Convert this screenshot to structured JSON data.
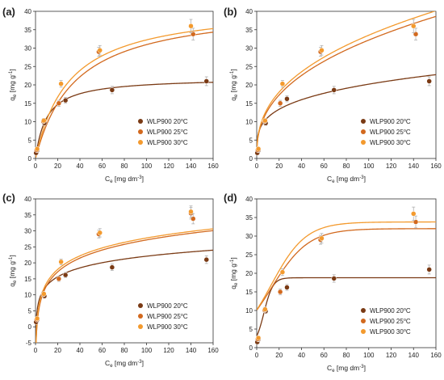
{
  "colors": {
    "s20": "#7a3a14",
    "s25": "#d2691e",
    "s30": "#f39a2e",
    "error_bar": "#b0b0b0",
    "axis": "#333333"
  },
  "chart_data": [
    {
      "type": "scatter",
      "panel_label": "(a)",
      "xlabel": "C",
      "xlabel_sub": "e",
      "xlabel_unit": " [mg dm",
      "xlabel_sup": "-3",
      "xlabel_end": "]",
      "ylabel": "q",
      "ylabel_sub": "e",
      "ylabel_unit": " [mg g",
      "ylabel_sup": "-1",
      "ylabel_end": "]",
      "xlim": [
        0,
        160
      ],
      "ylim": [
        0,
        40
      ],
      "xticks": [
        0,
        20,
        40,
        60,
        80,
        100,
        120,
        140,
        160
      ],
      "yticks": [
        0,
        5,
        10,
        15,
        20,
        25,
        30,
        35,
        40
      ],
      "legend_position": "lower-right",
      "series": [
        {
          "name": "WLP900 20",
          "name_sup": "o",
          "name_end": "C",
          "color": "s20",
          "points": [
            [
              0.5,
              1.5,
              0.4
            ],
            [
              1.5,
              2.2,
              0.4
            ],
            [
              8,
              9.6,
              0.6
            ],
            [
              27,
              15.8,
              0.8
            ],
            [
              69,
              18.6,
              1.0
            ],
            [
              154,
              21.0,
              1.2
            ]
          ],
          "fit": {
            "model": "langmuir",
            "qmax": 22.0,
            "K": 0.1
          }
        },
        {
          "name": "WLP900 25",
          "name_sup": "o",
          "name_end": "C",
          "color": "s25",
          "points": [
            [
              1,
              2.3,
              0.5
            ],
            [
              7,
              10.1,
              0.6
            ],
            [
              21,
              15.0,
              0.8
            ],
            [
              57,
              29.0,
              1.2
            ],
            [
              142,
              33.8,
              1.6
            ]
          ],
          "fit": {
            "model": "langmuir",
            "qmax": 42.0,
            "K": 0.028
          }
        },
        {
          "name": "WLP900 30",
          "name_sup": "o",
          "name_end": "C",
          "color": "s30",
          "points": [
            [
              1.5,
              2.6,
              0.5
            ],
            [
              7.5,
              10.3,
              0.6
            ],
            [
              23,
              20.3,
              0.9
            ],
            [
              58,
              29.4,
              1.3
            ],
            [
              140,
              36.0,
              1.8
            ]
          ],
          "fit": {
            "model": "langmuir",
            "qmax": 42.0,
            "K": 0.033
          }
        }
      ]
    },
    {
      "type": "scatter",
      "panel_label": "(b)",
      "xlabel": "C",
      "xlabel_sub": "e",
      "xlabel_unit": " [mg dm",
      "xlabel_sup": "-3",
      "xlabel_end": "]",
      "ylabel": "q",
      "ylabel_sub": "e",
      "ylabel_unit": " [mg g",
      "ylabel_sup": "-1",
      "ylabel_end": "]",
      "xlim": [
        0,
        160
      ],
      "ylim": [
        0,
        40
      ],
      "xticks": [
        0,
        20,
        40,
        60,
        80,
        100,
        120,
        140,
        160
      ],
      "yticks": [
        0,
        5,
        10,
        15,
        20,
        25,
        30,
        35,
        40
      ],
      "legend_position": "lower-right",
      "series": [
        {
          "name": "WLP900 20",
          "name_sup": "o",
          "name_end": "C",
          "color": "s20",
          "points": [
            [
              0.5,
              1.5,
              0.4
            ],
            [
              1.5,
              2.2,
              0.4
            ],
            [
              8,
              9.6,
              0.6
            ],
            [
              27,
              16.2,
              0.8
            ],
            [
              69,
              18.6,
              1.0
            ],
            [
              154,
              21.0,
              1.2
            ]
          ],
          "fit": {
            "model": "freundlich",
            "K": 6.2,
            "n": 3.9
          }
        },
        {
          "name": "WLP900 25",
          "name_sup": "o",
          "name_end": "C",
          "color": "s25",
          "points": [
            [
              1,
              2.3,
              0.5
            ],
            [
              7,
              10.1,
              0.6
            ],
            [
              21,
              15.0,
              0.8
            ],
            [
              57,
              29.0,
              1.2
            ],
            [
              142,
              33.8,
              1.6
            ]
          ],
          "fit": {
            "model": "freundlich",
            "K": 5.4,
            "n": 2.58
          }
        },
        {
          "name": "WLP900 30",
          "name_sup": "o",
          "name_end": "C",
          "color": "s30",
          "points": [
            [
              1.5,
              2.6,
              0.5
            ],
            [
              7.5,
              10.3,
              0.6
            ],
            [
              23,
              20.3,
              0.9
            ],
            [
              58,
              29.4,
              1.3
            ],
            [
              140,
              36.0,
              1.8
            ]
          ],
          "fit": {
            "model": "freundlich",
            "K": 5.7,
            "n": 2.6
          }
        }
      ]
    },
    {
      "type": "scatter",
      "panel_label": "(c)",
      "xlabel": "C",
      "xlabel_sub": "e",
      "xlabel_unit": " [mg dm",
      "xlabel_sup": "-3",
      "xlabel_end": "]",
      "ylabel": "q",
      "ylabel_sub": "e",
      "ylabel_unit": " [mg g",
      "ylabel_sup": "-1",
      "ylabel_end": "]",
      "xlim": [
        0,
        160
      ],
      "ylim": [
        -5,
        40
      ],
      "xticks": [
        0,
        20,
        40,
        60,
        80,
        100,
        120,
        140,
        160
      ],
      "yticks": [
        -5,
        0,
        5,
        10,
        15,
        20,
        25,
        30,
        35,
        40
      ],
      "legend_position": "lower-right",
      "series": [
        {
          "name": "WLP900 20",
          "name_sup": "o",
          "name_end": "C",
          "color": "s20",
          "points": [
            [
              0.5,
              1.5,
              0.4
            ],
            [
              1.5,
              2.2,
              0.4
            ],
            [
              8,
              9.6,
              0.6
            ],
            [
              27,
              16.2,
              0.8
            ],
            [
              69,
              18.6,
              1.0
            ],
            [
              154,
              21.0,
              1.2
            ]
          ],
          "fit": {
            "model": "temkin",
            "A": 2.5,
            "B": 4.0
          }
        },
        {
          "name": "WLP900 25",
          "name_sup": "o",
          "name_end": "C",
          "color": "s25",
          "points": [
            [
              1,
              2.3,
              0.5
            ],
            [
              7,
              10.1,
              0.6
            ],
            [
              21,
              15.0,
              0.8
            ],
            [
              57,
              29.0,
              1.2
            ],
            [
              140,
              35.5,
              1.8
            ],
            [
              142,
              33.8,
              1.6
            ]
          ],
          "fit": {
            "model": "temkin",
            "A": 0.8,
            "B": 6.2
          }
        },
        {
          "name": "WLP900 30",
          "name_sup": "o",
          "name_end": "C",
          "color": "s30",
          "points": [
            [
              1.5,
              2.6,
              0.5
            ],
            [
              7.5,
              10.3,
              0.6
            ],
            [
              23,
              20.3,
              0.9
            ],
            [
              58,
              29.4,
              1.3
            ],
            [
              140,
              36.0,
              1.8
            ]
          ],
          "fit": {
            "model": "temkin",
            "A": 0.95,
            "B": 6.1
          }
        }
      ]
    },
    {
      "type": "scatter",
      "panel_label": "(d)",
      "xlabel": "C",
      "xlabel_sub": "e",
      "xlabel_unit": " [mg dm",
      "xlabel_sup": "-3",
      "xlabel_end": "]",
      "ylabel": "q",
      "ylabel_sub": "e",
      "ylabel_unit": " [mg g",
      "ylabel_sup": "-1",
      "ylabel_end": "]",
      "xlim": [
        0,
        160
      ],
      "ylim": [
        0,
        40
      ],
      "xticks": [
        0,
        20,
        40,
        60,
        80,
        100,
        120,
        140,
        160
      ],
      "yticks": [
        0,
        5,
        10,
        15,
        20,
        25,
        30,
        35,
        40
      ],
      "legend_position": "lower-right",
      "series": [
        {
          "name": "WLP900 20",
          "name_sup": "o",
          "name_end": "C",
          "color": "s20",
          "points": [
            [
              0.5,
              1.5,
              0.4
            ],
            [
              1.5,
              2.2,
              0.4
            ],
            [
              8,
              9.8,
              0.6
            ],
            [
              27,
              16.2,
              0.8
            ],
            [
              69,
              18.6,
              1.0
            ],
            [
              154,
              21.0,
              1.2
            ]
          ],
          "fit": {
            "model": "sigmoid",
            "qmax": 18.8,
            "x0": 6.5,
            "k": 0.25
          }
        },
        {
          "name": "WLP900 25",
          "name_sup": "o",
          "name_end": "C",
          "color": "s25",
          "points": [
            [
              1,
              2.3,
              0.5
            ],
            [
              7,
              10.1,
              0.6
            ],
            [
              21,
              15.0,
              0.8
            ],
            [
              57,
              29.0,
              1.2
            ],
            [
              142,
              33.8,
              1.6
            ]
          ],
          "fit": {
            "model": "sigmoid",
            "qmax": 32.0,
            "x0": 13.0,
            "k": 0.06
          }
        },
        {
          "name": "WLP900 30",
          "name_sup": "o",
          "name_end": "C",
          "color": "s30",
          "points": [
            [
              1.5,
              2.6,
              0.5
            ],
            [
              7.5,
              10.3,
              0.6
            ],
            [
              23,
              20.3,
              0.9
            ],
            [
              58,
              29.4,
              1.3
            ],
            [
              140,
              36.0,
              1.8
            ]
          ],
          "fit": {
            "model": "sigmoid",
            "qmax": 33.8,
            "x0": 13.0,
            "k": 0.065
          }
        }
      ]
    }
  ]
}
